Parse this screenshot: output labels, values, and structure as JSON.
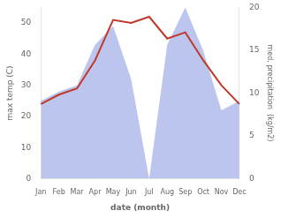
{
  "chart_data": {
    "type": "line",
    "categories": [
      "Jan",
      "Feb",
      "Mar",
      "Apr",
      "May",
      "Jun",
      "Jul",
      "Aug",
      "Sep",
      "Oct",
      "Nov",
      "Dec"
    ],
    "series": [
      {
        "type": "area",
        "color": "#bcc5ee",
        "values": [
          25,
          28,
          30,
          43,
          49,
          32,
          0,
          43,
          55,
          41,
          22,
          25
        ]
      },
      {
        "type": "line",
        "color": "#c0392b",
        "values": [
          24,
          27,
          29,
          38,
          51,
          50,
          52,
          45,
          47,
          38,
          30,
          24
        ]
      }
    ],
    "xlabel": "date (month)",
    "ylabel": "max temp (C)",
    "y2label": "med. precipitation  (kg/m2)",
    "ylim": [
      0,
      55
    ],
    "yticks": [
      0,
      10,
      20,
      30,
      40,
      50
    ],
    "y2lim": [
      0,
      20
    ],
    "y2ticks": [
      0,
      5,
      10,
      15,
      20
    ],
    "grid": false
  }
}
